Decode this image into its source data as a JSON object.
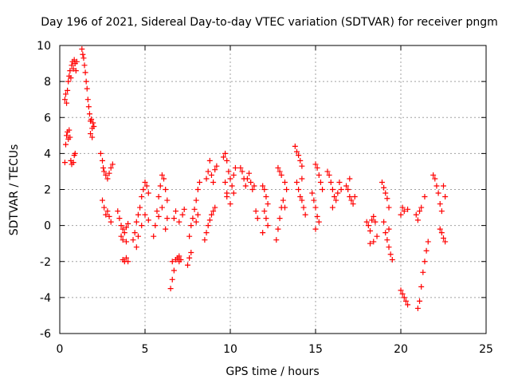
{
  "chart_data": {
    "type": "scatter",
    "title": "Day 196 of 2021, Sidereal Day-to-day VTEC variation (SDTVAR) for receiver pngm",
    "xlabel": "GPS time / hours",
    "ylabel": "SDTVAR / TECUs",
    "xlim": [
      0,
      25
    ],
    "ylim": [
      -6,
      10
    ],
    "xticks": [
      "0",
      "5",
      "10",
      "15",
      "20",
      "25"
    ],
    "yticks": [
      "-6",
      "-4",
      "-2",
      "0",
      "2",
      "4",
      "6",
      "8",
      "10"
    ],
    "grid": true,
    "marker": "+",
    "color": "#ff0000",
    "series": [
      {
        "name": "SDTVAR",
        "points": [
          [
            0.3,
            3.5
          ],
          [
            0.35,
            4.5
          ],
          [
            0.4,
            5.0
          ],
          [
            0.45,
            5.2
          ],
          [
            0.5,
            4.8
          ],
          [
            0.55,
            5.3
          ],
          [
            0.6,
            4.9
          ],
          [
            0.65,
            3.6
          ],
          [
            0.7,
            3.4
          ],
          [
            0.8,
            3.5
          ],
          [
            0.85,
            3.9
          ],
          [
            0.9,
            4.0
          ],
          [
            0.3,
            7.0
          ],
          [
            0.35,
            7.3
          ],
          [
            0.4,
            6.8
          ],
          [
            0.45,
            7.5
          ],
          [
            0.5,
            8.0
          ],
          [
            0.55,
            8.3
          ],
          [
            0.6,
            8.6
          ],
          [
            0.65,
            8.2
          ],
          [
            0.7,
            8.9
          ],
          [
            0.75,
            9.1
          ],
          [
            0.8,
            8.7
          ],
          [
            0.85,
            9.2
          ],
          [
            0.9,
            9.0
          ],
          [
            0.95,
            8.6
          ],
          [
            1.0,
            9.1
          ],
          [
            1.3,
            9.8
          ],
          [
            1.35,
            9.5
          ],
          [
            1.4,
            9.3
          ],
          [
            1.45,
            8.9
          ],
          [
            1.5,
            8.5
          ],
          [
            1.55,
            8.0
          ],
          [
            1.6,
            7.6
          ],
          [
            1.65,
            7.0
          ],
          [
            1.7,
            6.6
          ],
          [
            1.75,
            6.2
          ],
          [
            1.8,
            5.8
          ],
          [
            1.85,
            5.9
          ],
          [
            1.9,
            5.4
          ],
          [
            1.95,
            5.7
          ],
          [
            2.0,
            5.5
          ],
          [
            1.8,
            5.1
          ],
          [
            1.9,
            4.9
          ],
          [
            2.4,
            4.0
          ],
          [
            2.5,
            3.6
          ],
          [
            2.55,
            3.2
          ],
          [
            2.6,
            3.0
          ],
          [
            2.7,
            2.8
          ],
          [
            2.8,
            2.6
          ],
          [
            2.9,
            2.9
          ],
          [
            3.0,
            3.2
          ],
          [
            3.1,
            3.4
          ],
          [
            2.5,
            1.4
          ],
          [
            2.6,
            1.0
          ],
          [
            2.8,
            0.8
          ],
          [
            2.9,
            0.5
          ],
          [
            3.0,
            0.2
          ],
          [
            2.7,
            0.6
          ],
          [
            3.4,
            0.8
          ],
          [
            3.5,
            0.4
          ],
          [
            3.6,
            0.0
          ],
          [
            3.7,
            -0.2
          ],
          [
            3.8,
            -0.4
          ],
          [
            3.9,
            -0.1
          ],
          [
            4.0,
            0.1
          ],
          [
            3.6,
            -0.6
          ],
          [
            3.7,
            -0.8
          ],
          [
            3.9,
            -0.9
          ],
          [
            3.7,
            -1.9
          ],
          [
            3.8,
            -2.0
          ],
          [
            3.9,
            -1.8
          ],
          [
            4.0,
            -2.0
          ],
          [
            4.3,
            -0.8
          ],
          [
            4.4,
            -0.4
          ],
          [
            4.5,
            0.2
          ],
          [
            4.6,
            0.6
          ],
          [
            4.7,
            1.0
          ],
          [
            4.8,
            1.6
          ],
          [
            4.9,
            2.0
          ],
          [
            5.0,
            2.4
          ],
          [
            5.1,
            2.2
          ],
          [
            5.2,
            1.8
          ],
          [
            4.5,
            -1.2
          ],
          [
            4.6,
            -0.6
          ],
          [
            4.8,
            0.0
          ],
          [
            5.0,
            0.6
          ],
          [
            5.2,
            0.3
          ],
          [
            5.5,
            -0.6
          ],
          [
            5.6,
            0.0
          ],
          [
            5.7,
            0.8
          ],
          [
            5.8,
            1.6
          ],
          [
            5.9,
            2.2
          ],
          [
            6.0,
            2.8
          ],
          [
            6.1,
            2.6
          ],
          [
            6.2,
            2.0
          ],
          [
            6.3,
            1.4
          ],
          [
            5.8,
            0.5
          ],
          [
            6.0,
            1.0
          ],
          [
            6.3,
            0.4
          ],
          [
            6.2,
            -0.2
          ],
          [
            6.5,
            -3.5
          ],
          [
            6.6,
            -3.0
          ],
          [
            6.7,
            -2.5
          ],
          [
            6.6,
            -2.0
          ],
          [
            6.8,
            -1.9
          ],
          [
            6.9,
            -1.8
          ],
          [
            7.0,
            -2.0
          ],
          [
            7.1,
            -1.9
          ],
          [
            7.0,
            -1.7
          ],
          [
            6.7,
            0.4
          ],
          [
            6.8,
            0.8
          ],
          [
            7.0,
            0.2
          ],
          [
            7.2,
            0.6
          ],
          [
            7.3,
            0.9
          ],
          [
            7.5,
            -2.2
          ],
          [
            7.6,
            -1.8
          ],
          [
            7.7,
            -1.5
          ],
          [
            7.6,
            -0.6
          ],
          [
            7.7,
            0.0
          ],
          [
            7.8,
            0.4
          ],
          [
            7.9,
            0.9
          ],
          [
            8.0,
            1.4
          ],
          [
            8.1,
            2.0
          ],
          [
            8.2,
            2.4
          ],
          [
            8.0,
            0.2
          ],
          [
            8.1,
            0.6
          ],
          [
            8.5,
            -0.8
          ],
          [
            8.6,
            -0.4
          ],
          [
            8.7,
            0.0
          ],
          [
            8.8,
            0.3
          ],
          [
            8.9,
            0.6
          ],
          [
            9.0,
            0.8
          ],
          [
            9.1,
            1.0
          ],
          [
            8.6,
            2.6
          ],
          [
            8.7,
            3.0
          ],
          [
            8.8,
            3.6
          ],
          [
            8.9,
            2.8
          ],
          [
            9.0,
            2.4
          ],
          [
            9.1,
            3.1
          ],
          [
            9.2,
            3.3
          ],
          [
            9.6,
            3.8
          ],
          [
            9.7,
            4.0
          ],
          [
            9.8,
            3.6
          ],
          [
            9.9,
            3.0
          ],
          [
            10.0,
            2.6
          ],
          [
            10.1,
            2.2
          ],
          [
            10.2,
            1.8
          ],
          [
            9.7,
            2.4
          ],
          [
            9.8,
            1.6
          ],
          [
            10.0,
            1.2
          ],
          [
            10.2,
            2.8
          ],
          [
            10.3,
            3.2
          ],
          [
            9.8,
            1.8
          ],
          [
            10.6,
            3.2
          ],
          [
            10.7,
            3.0
          ],
          [
            10.8,
            2.6
          ],
          [
            10.9,
            2.2
          ],
          [
            11.0,
            2.6
          ],
          [
            11.1,
            2.9
          ],
          [
            11.2,
            2.4
          ],
          [
            11.3,
            2.0
          ],
          [
            11.4,
            2.2
          ],
          [
            11.5,
            0.8
          ],
          [
            11.6,
            0.4
          ],
          [
            11.9,
            2.2
          ],
          [
            12.0,
            2.0
          ],
          [
            12.1,
            1.6
          ],
          [
            12.2,
            1.2
          ],
          [
            12.0,
            0.8
          ],
          [
            12.1,
            0.4
          ],
          [
            12.2,
            0.0
          ],
          [
            11.9,
            -0.4
          ],
          [
            12.7,
            -0.8
          ],
          [
            12.8,
            -0.2
          ],
          [
            12.9,
            0.4
          ],
          [
            13.0,
            1.0
          ],
          [
            13.1,
            1.4
          ],
          [
            13.2,
            1.0
          ],
          [
            12.8,
            3.2
          ],
          [
            12.9,
            3.0
          ],
          [
            13.0,
            2.8
          ],
          [
            13.2,
            2.4
          ],
          [
            13.3,
            2.0
          ],
          [
            13.8,
            4.4
          ],
          [
            13.9,
            4.1
          ],
          [
            14.0,
            3.9
          ],
          [
            14.1,
            3.6
          ],
          [
            14.2,
            3.3
          ],
          [
            13.9,
            2.4
          ],
          [
            14.0,
            2.0
          ],
          [
            14.1,
            1.6
          ],
          [
            14.2,
            1.4
          ],
          [
            14.3,
            1.0
          ],
          [
            14.4,
            0.6
          ],
          [
            14.2,
            2.6
          ],
          [
            14.8,
            1.8
          ],
          [
            14.9,
            1.4
          ],
          [
            15.0,
            1.0
          ],
          [
            15.1,
            0.5
          ],
          [
            15.2,
            0.2
          ],
          [
            15.0,
            3.4
          ],
          [
            15.1,
            3.2
          ],
          [
            15.2,
            2.8
          ],
          [
            15.3,
            2.4
          ],
          [
            15.4,
            2.0
          ],
          [
            15.0,
            -0.2
          ],
          [
            15.7,
            3.0
          ],
          [
            15.8,
            2.8
          ],
          [
            15.9,
            2.4
          ],
          [
            16.0,
            2.0
          ],
          [
            16.1,
            1.6
          ],
          [
            16.2,
            1.4
          ],
          [
            16.3,
            1.8
          ],
          [
            16.0,
            1.0
          ],
          [
            16.4,
            2.4
          ],
          [
            16.5,
            2.0
          ],
          [
            16.8,
            2.2
          ],
          [
            16.9,
            2.0
          ],
          [
            17.0,
            1.6
          ],
          [
            17.1,
            1.4
          ],
          [
            17.2,
            1.2
          ],
          [
            17.3,
            1.6
          ],
          [
            17.0,
            2.6
          ],
          [
            18.0,
            0.2
          ],
          [
            18.1,
            0.0
          ],
          [
            18.2,
            -0.3
          ],
          [
            18.3,
            0.3
          ],
          [
            18.4,
            0.5
          ],
          [
            18.5,
            0.2
          ],
          [
            18.6,
            -0.6
          ],
          [
            18.4,
            -0.9
          ],
          [
            18.2,
            -1.0
          ],
          [
            18.9,
            2.4
          ],
          [
            19.0,
            2.1
          ],
          [
            19.1,
            1.8
          ],
          [
            19.2,
            1.5
          ],
          [
            19.3,
            1.0
          ],
          [
            19.0,
            0.2
          ],
          [
            19.1,
            -0.4
          ],
          [
            19.2,
            -0.8
          ],
          [
            19.3,
            -1.2
          ],
          [
            19.4,
            -1.6
          ],
          [
            19.5,
            -1.9
          ],
          [
            19.3,
            -0.2
          ],
          [
            20.0,
            -3.6
          ],
          [
            20.1,
            -3.8
          ],
          [
            20.2,
            -4.0
          ],
          [
            20.3,
            -4.2
          ],
          [
            20.4,
            -4.4
          ],
          [
            20.0,
            0.6
          ],
          [
            20.1,
            1.0
          ],
          [
            20.2,
            0.8
          ],
          [
            20.4,
            0.9
          ],
          [
            20.9,
            0.6
          ],
          [
            21.0,
            0.3
          ],
          [
            21.1,
            0.8
          ],
          [
            21.2,
            1.0
          ],
          [
            21.0,
            -4.6
          ],
          [
            21.1,
            -4.2
          ],
          [
            21.2,
            -3.4
          ],
          [
            21.3,
            -2.6
          ],
          [
            21.4,
            -2.0
          ],
          [
            21.5,
            -1.4
          ],
          [
            21.6,
            -0.9
          ],
          [
            21.4,
            1.6
          ],
          [
            21.9,
            2.8
          ],
          [
            22.0,
            2.6
          ],
          [
            22.1,
            2.2
          ],
          [
            22.2,
            1.8
          ],
          [
            22.3,
            1.2
          ],
          [
            22.4,
            0.8
          ],
          [
            22.3,
            -0.2
          ],
          [
            22.4,
            -0.4
          ],
          [
            22.5,
            -0.7
          ],
          [
            22.6,
            -0.9
          ],
          [
            22.5,
            2.2
          ],
          [
            22.6,
            1.6
          ]
        ]
      }
    ]
  }
}
